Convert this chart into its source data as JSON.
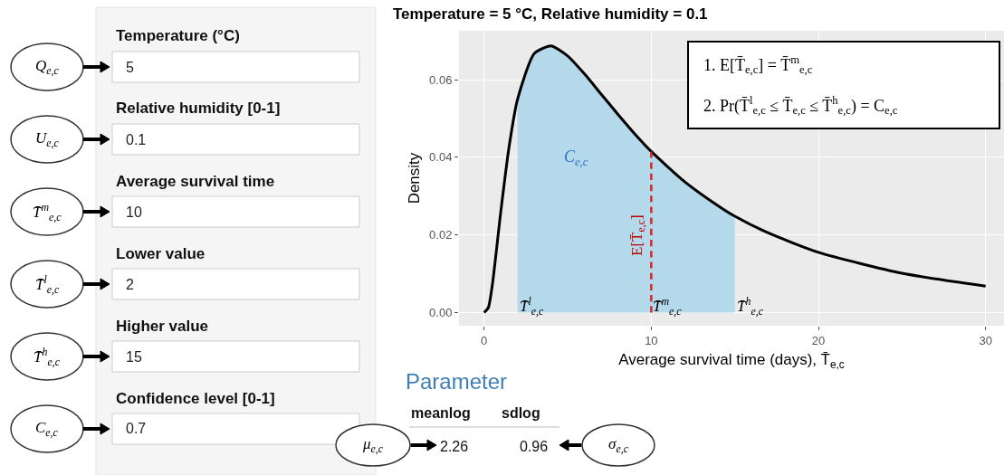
{
  "chart_data": [
    {
      "type": "other",
      "annotations": [
        "Q$_{e,c}$",
        "Temperature (°C)",
        "5",
        "U$_{e,c}$",
        "Relative humidity [0-1]",
        "0.1",
        "T̄$^{m}$$_{e,c}$",
        "Average survival time",
        "10",
        "T̄$^{l}$$_{e,c}$",
        "Lower value",
        "2",
        "T̄$^{h}$$_{e,c}$",
        "Higher value",
        "15",
        "C$_{e,c}$",
        "Confidence level [0-1]",
        "0.7"
      ]
    },
    {
      "type": "line",
      "title": "Temperature = 5 °C, Relative humidity = 0.1",
      "xlabel": "Average survival time (days), T̄$_{e,c}$",
      "ylabel": "Density",
      "x": [
        0,
        0.25,
        0.5,
        1,
        1.5,
        2,
        3,
        4,
        5,
        6,
        7,
        8,
        9,
        10,
        12,
        14,
        15,
        17,
        20,
        25,
        30
      ],
      "series": [
        {
          "type": "area",
          "color": "#b3d9eb",
          "x": [
            2,
            3,
            4,
            5,
            6,
            7,
            8,
            9,
            10,
            12,
            14,
            15
          ],
          "values": [
            0.0549,
            0.0667,
            0.0687,
            0.0661,
            0.0615,
            0.0563,
            0.0511,
            0.0461,
            0.0415,
            0.0337,
            0.0275,
            0.0248
          ]
        },
        {
          "color": "#000000",
          "values": [
            0,
            0.0012,
            0.0073,
            0.026,
            0.0428,
            0.0549,
            0.0667,
            0.0687,
            0.0661,
            0.0615,
            0.0563,
            0.0511,
            0.0461,
            0.0415,
            0.0337,
            0.0275,
            0.0248,
            0.0205,
            0.0155,
            0.0101,
            0.0068
          ]
        },
        {
          "color": "#d62728",
          "line_style": "dashed",
          "x": [
            10,
            10
          ],
          "values": [
            0.0415,
            0
          ]
        }
      ],
      "xlim": [
        -1.5,
        31.1
      ],
      "xticks": [
        0,
        10,
        20,
        30
      ],
      "ylim": [
        -0.0034,
        0.0726
      ],
      "yticks": [
        {
          "value": 0,
          "label": "0.00"
        },
        {
          "value": 0.02,
          "label": "0.02"
        },
        {
          "value": 0.04,
          "label": "0.04"
        },
        {
          "value": 0.06,
          "label": "0.06"
        }
      ],
      "grid": true,
      "annotations": [
        "C$_{e,c}$",
        {
          "text": "E[T̄$_{e,c}$]",
          "x": 10,
          "y": 0.02
        },
        {
          "text": "T̄$^{l}$$_{e,c}$",
          "x": 2,
          "y": 0
        },
        {
          "text": "T̄$^{m}$$_{e,c}$",
          "x": 10,
          "y": 0
        },
        {
          "text": "T̄$^{h}$$_{e,c}$",
          "x": 15,
          "y": 0
        },
        "1. E[T̄$_{e,c}$] = T̄$^{m}$$_{e,c}$",
        "2. Pr(T̄$^{l}$$_{e,c}$ ≤ T̄$_{e,c}$ ≤ T̄$^{h}$$_{e,c}$) = C$_{e,c}$"
      ]
    },
    {
      "type": "other",
      "title": "Parameter",
      "categories": [
        "meanlog",
        "sdlog"
      ],
      "values": [
        2.26,
        0.96
      ],
      "data_labels": true,
      "annotations": [
        "μ$_{e,c}$",
        "σ$_{e,c}$"
      ]
    }
  ]
}
